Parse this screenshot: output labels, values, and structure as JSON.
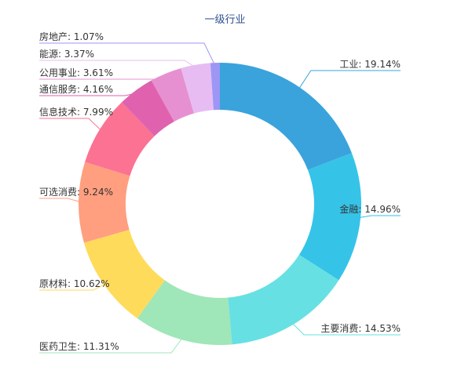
{
  "chart_data": {
    "type": "pie",
    "variant": "donut",
    "title": "一级行业",
    "legend": "none",
    "slices": [
      {
        "name": "工业",
        "value": 19.14,
        "label": "工业: 19.14%",
        "color": "#3aa3dc"
      },
      {
        "name": "金融",
        "value": 14.96,
        "label": "金融: 14.96%",
        "color": "#36c3e8"
      },
      {
        "name": "主要消费",
        "value": 14.53,
        "label": "主要消费: 14.53%",
        "color": "#67e0e3"
      },
      {
        "name": "医药卫生",
        "value": 11.31,
        "label": "医药卫生: 11.31%",
        "color": "#9fe6b8"
      },
      {
        "name": "原材料",
        "value": 10.62,
        "label": "原材料: 10.62%",
        "color": "#ffdb5c"
      },
      {
        "name": "可选消费",
        "value": 9.24,
        "label": "可选消费: 9.24%",
        "color": "#ff9f7f"
      },
      {
        "name": "信息技术",
        "value": 7.99,
        "label": "信息技术: 7.99%",
        "color": "#fb7293"
      },
      {
        "name": "通信服务",
        "value": 4.16,
        "label": "通信服务: 4.16%",
        "color": "#e062ae"
      },
      {
        "name": "公用事业",
        "value": 3.61,
        "label": "公用事业: 3.61%",
        "color": "#e690d1"
      },
      {
        "name": "能源",
        "value": 3.37,
        "label": "能源: 3.37%",
        "color": "#e7bcf3"
      },
      {
        "name": "房地产",
        "value": 1.07,
        "label": "房地产: 1.07%",
        "color": "#9d96f5"
      }
    ]
  }
}
